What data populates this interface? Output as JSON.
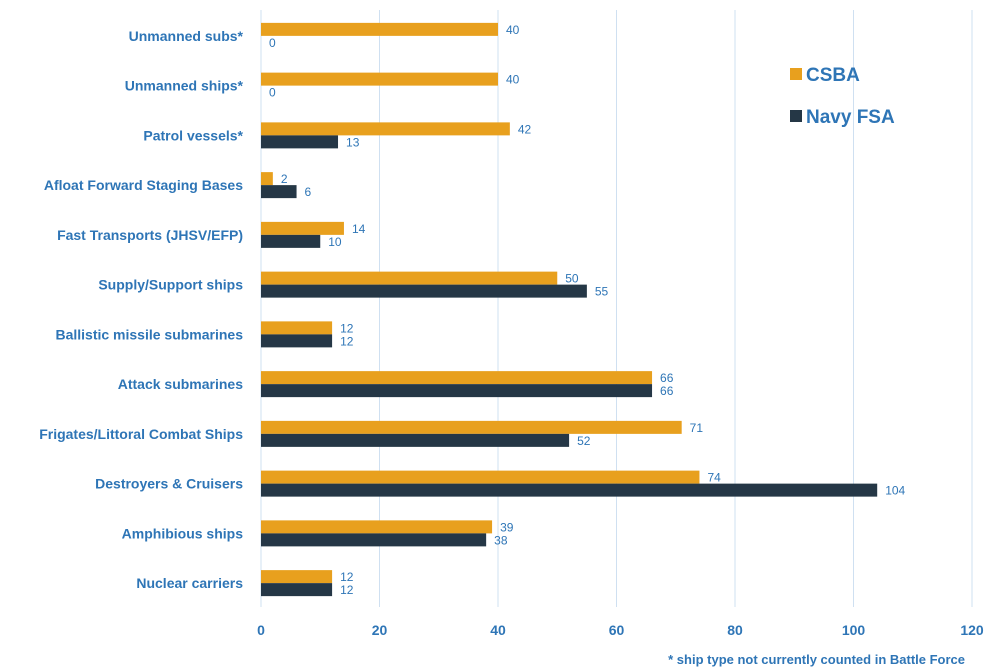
{
  "chart_data": {
    "type": "bar",
    "orientation": "horizontal",
    "categories": [
      "Unmanned subs*",
      "Unmanned ships*",
      "Patrol vessels*",
      "Afloat Forward Staging Bases",
      "Fast Transports (JHSV/EFP)",
      "Supply/Support ships",
      "Ballistic missile submarines",
      "Attack submarines",
      "Frigates/Littoral Combat Ships",
      "Destroyers & Cruisers",
      "Amphibious ships",
      "Nuclear carriers"
    ],
    "series": [
      {
        "name": "CSBA",
        "color": "#e8a01e",
        "values": [
          40,
          40,
          42,
          2,
          14,
          50,
          12,
          66,
          71,
          74,
          39,
          12
        ]
      },
      {
        "name": "Navy FSA",
        "color": "#253746",
        "values": [
          0,
          0,
          13,
          6,
          10,
          55,
          12,
          66,
          52,
          104,
          38,
          12
        ]
      }
    ],
    "xlim": [
      0,
      120
    ],
    "xticks": [
      "0",
      "20",
      "40",
      "60",
      "80",
      "100",
      "120"
    ],
    "grid": "vertical",
    "legend_position": "top-right",
    "footnote": "* ship type not currently counted in Battle Force"
  }
}
